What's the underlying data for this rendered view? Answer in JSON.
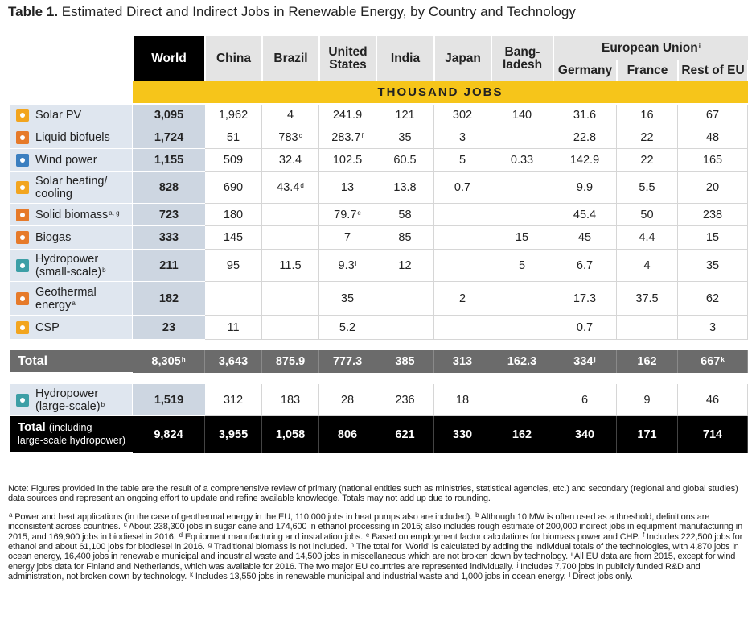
{
  "title": {
    "label": "Table 1.",
    "text": "Estimated Direct and Indirect Jobs in Renewable Energy, by Country and Technology"
  },
  "table": {
    "columns": [
      "World",
      "China",
      "Brazil",
      "United\nStates",
      "India",
      "Japan",
      "Bang-\nladesh"
    ],
    "group": {
      "label": "European Union",
      "note": "i",
      "columns": [
        "Germany",
        "France",
        "Rest of EU"
      ]
    },
    "unit": "THOUSAND JOBS",
    "rows": [
      {
        "label": "Solar PV",
        "cells": [
          "3,095",
          "1,962",
          "4",
          "241.9",
          "121",
          "302",
          "140",
          "31.6",
          "16",
          "67"
        ]
      },
      {
        "label": "Liquid biofuels",
        "cells": [
          "1,724",
          "51",
          {
            "text": "783",
            "note": "c"
          },
          {
            "text": "283.7",
            "note": "f"
          },
          "35",
          "3",
          null,
          "22.8",
          "22",
          "48"
        ]
      },
      {
        "label": "Wind power",
        "cells": [
          "1,155",
          "509",
          "32.4",
          "102.5",
          "60.5",
          "5",
          "0.33",
          "142.9",
          "22",
          "165"
        ]
      },
      {
        "label": "Solar heating/\ncooling",
        "cells": [
          "828",
          "690",
          {
            "text": "43.4",
            "note": "d"
          },
          "13",
          "13.8",
          "0.7",
          null,
          "9.9",
          "5.5",
          "20"
        ]
      },
      {
        "label": "Solid biomass",
        "note": "a, g",
        "cells": [
          "723",
          "180",
          null,
          {
            "text": "79.7",
            "note": "e"
          },
          "58",
          null,
          null,
          "45.4",
          "50",
          "238"
        ]
      },
      {
        "label": "Biogas",
        "cells": [
          "333",
          "145",
          null,
          "7",
          "85",
          null,
          "15",
          "45",
          "4.4",
          "15"
        ]
      },
      {
        "label": "Hydropower\n(small-scale)",
        "note": "b",
        "cells": [
          "211",
          "95",
          "11.5",
          {
            "text": "9.3",
            "note": "l"
          },
          "12",
          null,
          "5",
          "6.7",
          "4",
          "35"
        ]
      },
      {
        "label": "Geothermal\nenergy",
        "note": "a",
        "cells": [
          "182",
          null,
          null,
          "35",
          null,
          "2",
          null,
          "17.3",
          "37.5",
          "62"
        ]
      },
      {
        "label": "CSP",
        "cells": [
          "23",
          "11",
          null,
          "5.2",
          null,
          null,
          null,
          "0.7",
          null,
          "3"
        ]
      }
    ],
    "total": {
      "label": "Total",
      "cells": [
        {
          "text": "8,305",
          "note": "h"
        },
        "3,643",
        "875.9",
        "777.3",
        "385",
        "313",
        "162.3",
        {
          "text": "334",
          "note": "j"
        },
        "162",
        {
          "text": "667",
          "note": "k"
        }
      ]
    },
    "large_hydro": {
      "label": "Hydropower\n(large-scale)",
      "note": "b",
      "cells": [
        "1,519",
        "312",
        "183",
        "28",
        "236",
        "18",
        null,
        "6",
        "9",
        "46"
      ]
    },
    "grand_total": {
      "label": "Total",
      "label_extra": "(including\nlarge-scale hydropower)",
      "cells": [
        "9,824",
        "3,955",
        "1,058",
        "806",
        "621",
        "330",
        "162",
        "340",
        "171",
        "714"
      ]
    }
  },
  "note": "Note: Figures provided in the table are the result of a comprehensive review of primary (national entities such as ministries, statistical agencies, etc.) and secondary (regional and global studies) data sources and represent an ongoing effort to update and refine available knowledge. Totals may not add up due to rounding.",
  "footnotes": [
    {
      "mark": "a",
      "text": "Power and heat applications (in the case of geothermal energy in the EU, 110,000 jobs in heat pumps also are included)."
    },
    {
      "mark": "b",
      "text": "Although 10 MW is often used as a threshold, definitions are inconsistent across countries."
    },
    {
      "mark": "c",
      "text": "About 238,300 jobs in sugar cane and 174,600 in ethanol processing in 2015; also includes rough estimate of 200,000 indirect jobs in equipment manufacturing in 2015, and 169,900 jobs in biodiesel in 2016."
    },
    {
      "mark": "d",
      "text": "Equipment manufacturing and installation jobs."
    },
    {
      "mark": "e",
      "text": "Based on employment factor calculations for biomass power and CHP."
    },
    {
      "mark": "f",
      "text": "Includes 222,500 jobs for ethanol and about 61,100 jobs for biodiesel in 2016."
    },
    {
      "mark": "g",
      "text": "Traditional biomass is not included."
    },
    {
      "mark": "h",
      "text": "The total for 'World' is calculated by adding the individual totals of the technologies, with 4,870 jobs in ocean energy, 16,400 jobs in renewable municipal and industrial waste and 14,500 jobs in miscellaneous which are not broken down by technology."
    },
    {
      "mark": "i",
      "text": "All EU data are from 2015, except for wind energy jobs data for Finland and Netherlands, which was available for 2016. The two major EU countries are represented individually."
    },
    {
      "mark": "j",
      "text": "Includes 7,700 jobs in publicly funded R&D and administration, not broken down by technology."
    },
    {
      "mark": "k",
      "text": "Includes 13,550 jobs in renewable municipal and industrial waste and 1,000 jobs in ocean energy."
    },
    {
      "mark": "l",
      "text": "Direct jobs only."
    }
  ]
}
